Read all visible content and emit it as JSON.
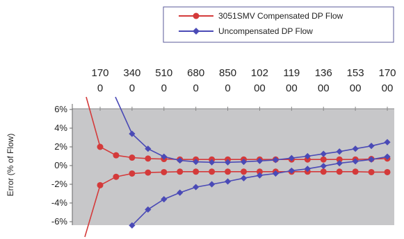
{
  "chart_data": {
    "type": "line",
    "ylabel": "Error (% of Flow)",
    "x_tick_labels": [
      [
        "170",
        "0"
      ],
      [
        "340",
        "0"
      ],
      [
        "510",
        "0"
      ],
      [
        "680",
        "0"
      ],
      [
        "850",
        "0"
      ],
      [
        "102",
        "00"
      ],
      [
        "119",
        "00"
      ],
      [
        "136",
        "00"
      ],
      [
        "153",
        "00"
      ],
      [
        "170",
        "00"
      ]
    ],
    "x_tick_values": [
      1700,
      3400,
      5100,
      6800,
      8500,
      10200,
      11900,
      13600,
      15300,
      17000
    ],
    "y_tick_labels": [
      "6%",
      "4%",
      "2%",
      "0%",
      "-2%",
      "-4%",
      "-6%"
    ],
    "y_tick_values": [
      6,
      4,
      2,
      0,
      -2,
      -4,
      -6
    ],
    "ylim": [
      -6.8,
      6.6
    ],
    "grid": false,
    "legend_position": "top-right",
    "series": [
      {
        "name": "3051SMV Compensated DP Flow",
        "color": "#d43a3a",
        "marker": "circle",
        "upper_points": [
          [
            1700,
            2.0
          ],
          [
            2550,
            1.1
          ],
          [
            3400,
            0.85
          ],
          [
            4250,
            0.75
          ],
          [
            5100,
            0.7
          ],
          [
            5950,
            0.65
          ],
          [
            6800,
            0.65
          ],
          [
            7650,
            0.65
          ],
          [
            8500,
            0.65
          ],
          [
            9350,
            0.65
          ],
          [
            10200,
            0.65
          ],
          [
            11050,
            0.65
          ],
          [
            11900,
            0.65
          ],
          [
            12750,
            0.65
          ],
          [
            13600,
            0.65
          ],
          [
            14450,
            0.65
          ],
          [
            15300,
            0.65
          ],
          [
            16150,
            0.7
          ],
          [
            17000,
            0.75
          ]
        ],
        "lower_points": [
          [
            1700,
            -2.1
          ],
          [
            2550,
            -1.2
          ],
          [
            3400,
            -0.85
          ],
          [
            4250,
            -0.75
          ],
          [
            5100,
            -0.7
          ],
          [
            5950,
            -0.65
          ],
          [
            6800,
            -0.65
          ],
          [
            7650,
            -0.65
          ],
          [
            8500,
            -0.65
          ],
          [
            9350,
            -0.65
          ],
          [
            10200,
            -0.65
          ],
          [
            11050,
            -0.65
          ],
          [
            11900,
            -0.65
          ],
          [
            12750,
            -0.65
          ],
          [
            13600,
            -0.65
          ],
          [
            14450,
            -0.65
          ],
          [
            15300,
            -0.65
          ],
          [
            16150,
            -0.7
          ],
          [
            17000,
            -0.7
          ]
        ]
      },
      {
        "name": "Uncompensated DP Flow",
        "color": "#4a4ab6",
        "marker": "diamond",
        "upper_points": [
          [
            3400,
            3.4
          ],
          [
            4250,
            1.8
          ],
          [
            5100,
            0.95
          ],
          [
            5950,
            0.55
          ],
          [
            6800,
            0.4
          ],
          [
            7650,
            0.35
          ],
          [
            8500,
            0.35
          ],
          [
            9350,
            0.4
          ],
          [
            10200,
            0.5
          ],
          [
            11050,
            0.6
          ],
          [
            11900,
            0.8
          ],
          [
            12750,
            1.0
          ],
          [
            13600,
            1.25
          ],
          [
            14450,
            1.5
          ],
          [
            15300,
            1.8
          ],
          [
            16150,
            2.1
          ],
          [
            17000,
            2.5
          ]
        ],
        "lower_points": [
          [
            3400,
            -6.4
          ],
          [
            4250,
            -4.7
          ],
          [
            5100,
            -3.6
          ],
          [
            5950,
            -2.9
          ],
          [
            6800,
            -2.3
          ],
          [
            7650,
            -2.0
          ],
          [
            8500,
            -1.7
          ],
          [
            9350,
            -1.35
          ],
          [
            10200,
            -1.05
          ],
          [
            11050,
            -0.85
          ],
          [
            11900,
            -0.55
          ],
          [
            12750,
            -0.35
          ],
          [
            13600,
            -0.05
          ],
          [
            14450,
            0.25
          ],
          [
            15300,
            0.45
          ],
          [
            16150,
            0.65
          ],
          [
            17000,
            0.95
          ]
        ]
      }
    ]
  }
}
